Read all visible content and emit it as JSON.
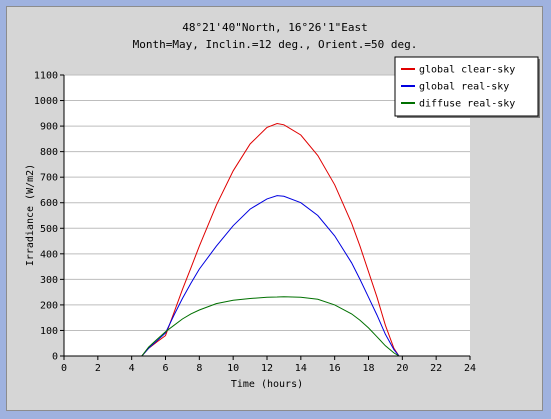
{
  "chart_data": {
    "type": "line",
    "title": "48°21'40\"North, 16°26'1\"East",
    "subtitle": "Month=May, Inclin.=12 deg., Orient.=50 deg.",
    "xlabel": "Time (hours)",
    "ylabel": "Irradiance (W/m2)",
    "xlim": [
      0,
      24
    ],
    "ylim": [
      0,
      1100
    ],
    "xticks": [
      0,
      2,
      4,
      6,
      8,
      10,
      12,
      14,
      16,
      18,
      20,
      22,
      24
    ],
    "yticks": [
      0,
      100,
      200,
      300,
      400,
      500,
      600,
      700,
      800,
      900,
      1000,
      1100
    ],
    "grid": "horizontal",
    "legend_position": "top-right",
    "series": [
      {
        "name": "global clear-sky",
        "color": "#e00000",
        "x": [
          4.6,
          5.0,
          5.5,
          6.0,
          6.5,
          7.0,
          7.5,
          8.0,
          9.0,
          10.0,
          11.0,
          12.0,
          12.6,
          13.0,
          14.0,
          15.0,
          16.0,
          17.0,
          17.5,
          18.0,
          18.5,
          19.0,
          19.5,
          19.8
        ],
        "y": [
          0,
          30,
          55,
          80,
          170,
          260,
          345,
          430,
          590,
          725,
          830,
          895,
          910,
          905,
          865,
          785,
          670,
          520,
          430,
          330,
          230,
          120,
          30,
          0
        ]
      },
      {
        "name": "global real-sky",
        "color": "#0000e0",
        "x": [
          4.6,
          5.0,
          5.5,
          6.0,
          6.5,
          7.0,
          7.5,
          8.0,
          9.0,
          10.0,
          11.0,
          12.0,
          12.6,
          13.0,
          14.0,
          15.0,
          16.0,
          17.0,
          17.5,
          18.0,
          18.5,
          19.0,
          19.5,
          19.8
        ],
        "y": [
          0,
          30,
          60,
          90,
          160,
          225,
          285,
          340,
          430,
          510,
          575,
          615,
          628,
          625,
          600,
          550,
          470,
          365,
          300,
          230,
          160,
          85,
          25,
          0
        ]
      },
      {
        "name": "diffuse real-sky",
        "color": "#007000",
        "x": [
          4.6,
          5.0,
          5.5,
          6.0,
          6.5,
          7.0,
          7.5,
          8.0,
          9.0,
          10.0,
          11.0,
          12.0,
          12.6,
          13.0,
          14.0,
          15.0,
          16.0,
          17.0,
          17.5,
          18.0,
          18.5,
          19.0,
          19.5,
          19.8
        ],
        "y": [
          0,
          35,
          65,
          95,
          120,
          145,
          165,
          180,
          205,
          218,
          225,
          230,
          231,
          232,
          230,
          222,
          200,
          165,
          140,
          110,
          75,
          40,
          12,
          0
        ]
      }
    ]
  }
}
